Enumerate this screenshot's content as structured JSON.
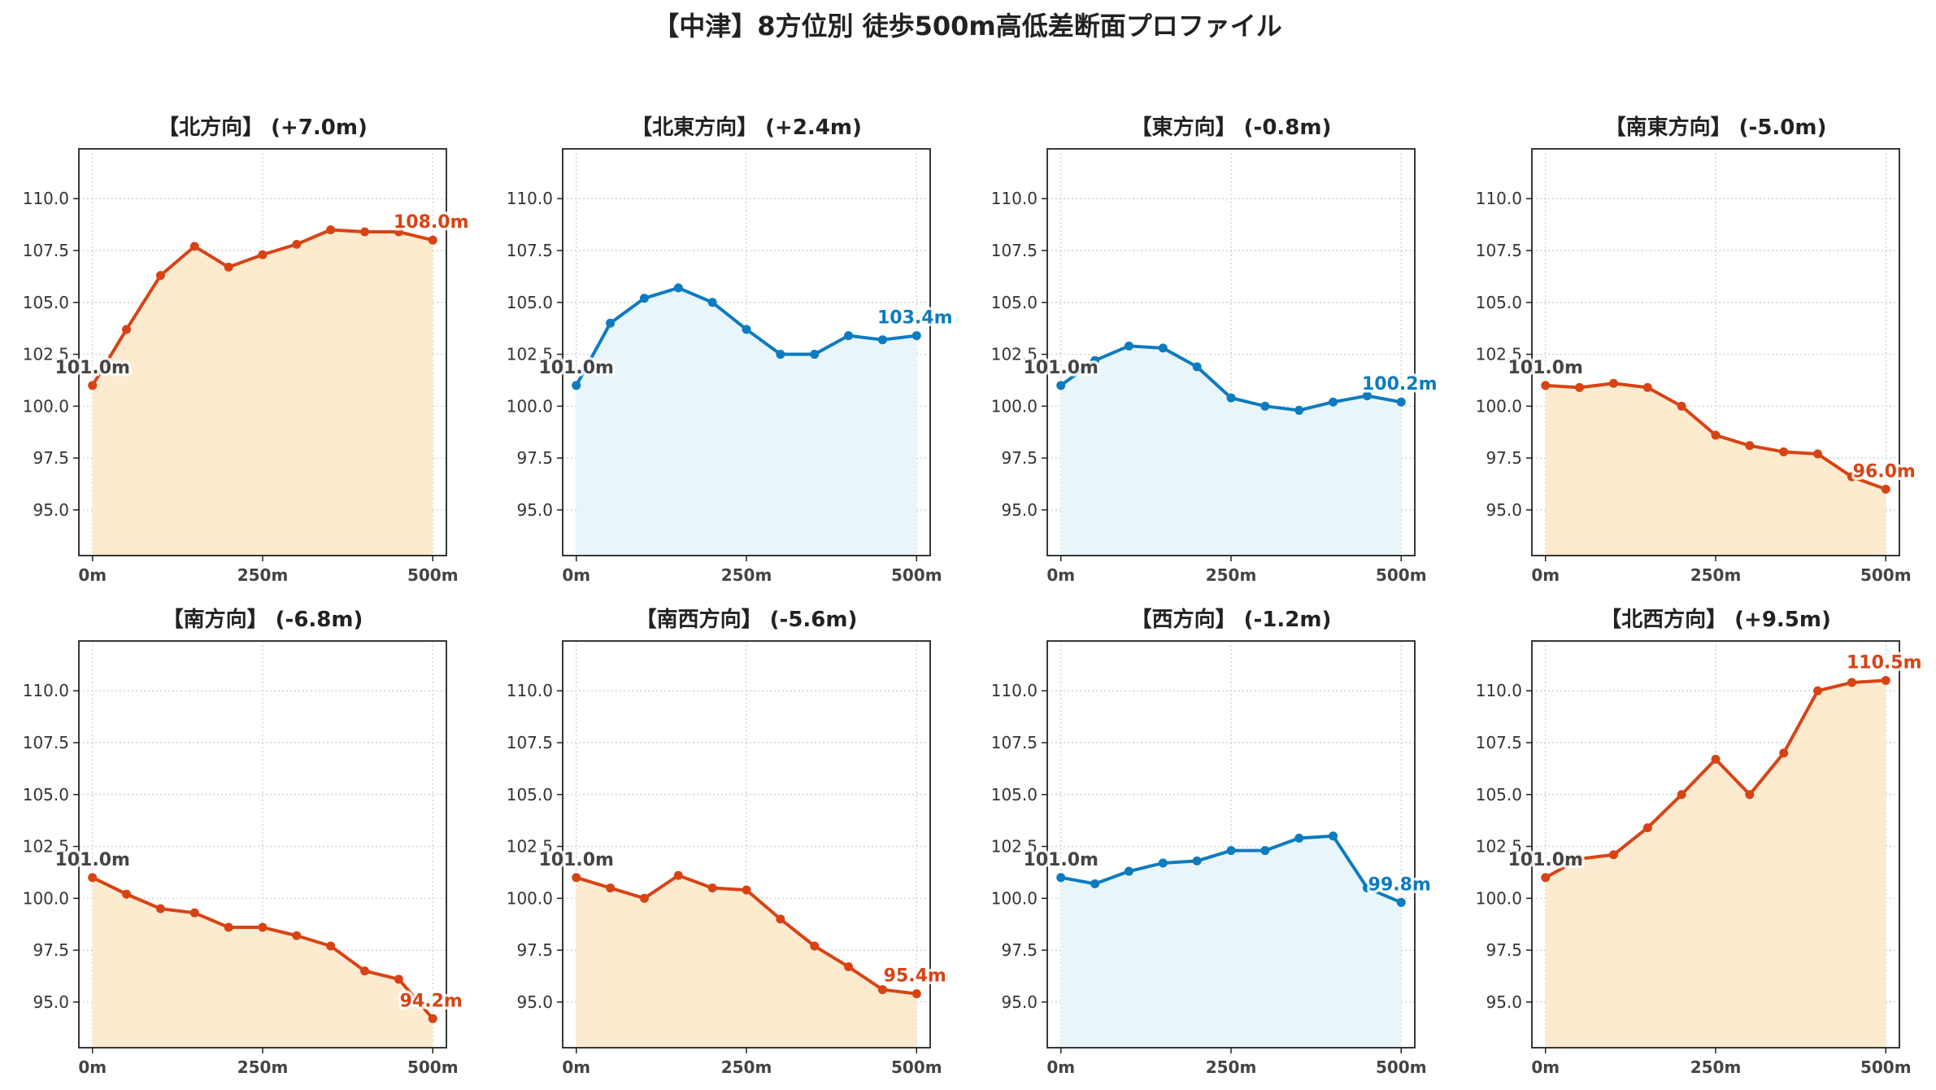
{
  "title": "【中津】8方位別 徒歩500m高低差断面プロファイル",
  "colors": {
    "up_line": "#d84315",
    "up_fill": "#fdebd0",
    "down_line": "#0d7bbf",
    "down_fill": "#e8f6fc",
    "start_label": "#444444"
  },
  "chart_data": [
    {
      "type": "line",
      "title": "【北方向】 (+7.0m)",
      "trend": "up",
      "x": [
        0,
        50,
        100,
        150,
        200,
        250,
        300,
        350,
        400,
        450,
        500
      ],
      "y": [
        101.0,
        103.7,
        106.3,
        107.7,
        106.7,
        107.3,
        107.8,
        108.5,
        108.4,
        108.4,
        108.0
      ],
      "start_label": "101.0m",
      "end_label": "108.0m",
      "xticks": [
        "0m",
        "250m",
        "500m"
      ],
      "yticks": [
        "95.0",
        "97.5",
        "100.0",
        "102.5",
        "105.0",
        "107.5",
        "110.0"
      ],
      "xlim": [
        -20,
        520
      ],
      "ylim": [
        92.8,
        112.4
      ],
      "grid": true
    },
    {
      "type": "line",
      "title": "【北東方向】 (+2.4m)",
      "trend": "down",
      "x": [
        0,
        50,
        100,
        150,
        200,
        250,
        300,
        350,
        400,
        450,
        500
      ],
      "y": [
        101.0,
        104.0,
        105.2,
        105.7,
        105.0,
        103.7,
        102.5,
        102.5,
        103.4,
        103.2,
        103.4
      ],
      "start_label": "101.0m",
      "end_label": "103.4m",
      "xticks": [
        "0m",
        "250m",
        "500m"
      ],
      "yticks": [
        "95.0",
        "97.5",
        "100.0",
        "102.5",
        "105.0",
        "107.5",
        "110.0"
      ],
      "xlim": [
        -20,
        520
      ],
      "ylim": [
        92.8,
        112.4
      ],
      "grid": true
    },
    {
      "type": "line",
      "title": "【東方向】 (-0.8m)",
      "trend": "down",
      "x": [
        0,
        50,
        100,
        150,
        200,
        250,
        300,
        350,
        400,
        450,
        500
      ],
      "y": [
        101.0,
        102.2,
        102.9,
        102.8,
        101.9,
        100.4,
        100.0,
        99.8,
        100.2,
        100.5,
        100.2
      ],
      "start_label": "101.0m",
      "end_label": "100.2m",
      "xticks": [
        "0m",
        "250m",
        "500m"
      ],
      "yticks": [
        "95.0",
        "97.5",
        "100.0",
        "102.5",
        "105.0",
        "107.5",
        "110.0"
      ],
      "xlim": [
        -20,
        520
      ],
      "ylim": [
        92.8,
        112.4
      ],
      "grid": true
    },
    {
      "type": "line",
      "title": "【南東方向】 (-5.0m)",
      "trend": "up",
      "x": [
        0,
        50,
        100,
        150,
        200,
        250,
        300,
        350,
        400,
        450,
        500
      ],
      "y": [
        101.0,
        100.9,
        101.1,
        100.9,
        100.0,
        98.6,
        98.1,
        97.8,
        97.7,
        96.6,
        96.0
      ],
      "start_label": "101.0m",
      "end_label": "96.0m",
      "xticks": [
        "0m",
        "250m",
        "500m"
      ],
      "yticks": [
        "95.0",
        "97.5",
        "100.0",
        "102.5",
        "105.0",
        "107.5",
        "110.0"
      ],
      "xlim": [
        -20,
        520
      ],
      "ylim": [
        92.8,
        112.4
      ],
      "grid": true
    },
    {
      "type": "line",
      "title": "【南方向】 (-6.8m)",
      "trend": "up",
      "x": [
        0,
        50,
        100,
        150,
        200,
        250,
        300,
        350,
        400,
        450,
        500
      ],
      "y": [
        101.0,
        100.2,
        99.5,
        99.3,
        98.6,
        98.6,
        98.2,
        97.7,
        96.5,
        96.1,
        94.2
      ],
      "start_label": "101.0m",
      "end_label": "94.2m",
      "xticks": [
        "0m",
        "250m",
        "500m"
      ],
      "yticks": [
        "95.0",
        "97.5",
        "100.0",
        "102.5",
        "105.0",
        "107.5",
        "110.0"
      ],
      "xlim": [
        -20,
        520
      ],
      "ylim": [
        92.8,
        112.4
      ],
      "grid": true
    },
    {
      "type": "line",
      "title": "【南西方向】 (-5.6m)",
      "trend": "up",
      "x": [
        0,
        50,
        100,
        150,
        200,
        250,
        300,
        350,
        400,
        450,
        500
      ],
      "y": [
        101.0,
        100.5,
        100.0,
        101.1,
        100.5,
        100.4,
        99.0,
        97.7,
        96.7,
        95.6,
        95.4
      ],
      "start_label": "101.0m",
      "end_label": "95.4m",
      "xticks": [
        "0m",
        "250m",
        "500m"
      ],
      "yticks": [
        "95.0",
        "97.5",
        "100.0",
        "102.5",
        "105.0",
        "107.5",
        "110.0"
      ],
      "xlim": [
        -20,
        520
      ],
      "ylim": [
        92.8,
        112.4
      ],
      "grid": true
    },
    {
      "type": "line",
      "title": "【西方向】 (-1.2m)",
      "trend": "down",
      "x": [
        0,
        50,
        100,
        150,
        200,
        250,
        300,
        350,
        400,
        450,
        500
      ],
      "y": [
        101.0,
        100.7,
        101.3,
        101.7,
        101.8,
        102.3,
        102.3,
        102.9,
        103.0,
        100.5,
        99.8
      ],
      "start_label": "101.0m",
      "end_label": "99.8m",
      "xticks": [
        "0m",
        "250m",
        "500m"
      ],
      "yticks": [
        "95.0",
        "97.5",
        "100.0",
        "102.5",
        "105.0",
        "107.5",
        "110.0"
      ],
      "xlim": [
        -20,
        520
      ],
      "ylim": [
        92.8,
        112.4
      ],
      "grid": true
    },
    {
      "type": "line",
      "title": "【北西方向】 (+9.5m)",
      "trend": "up",
      "x": [
        0,
        50,
        100,
        150,
        200,
        250,
        300,
        350,
        400,
        450,
        500
      ],
      "y": [
        101.0,
        101.9,
        102.1,
        103.4,
        105.0,
        106.7,
        105.0,
        107.0,
        110.0,
        110.4,
        110.5
      ],
      "start_label": "101.0m",
      "end_label": "110.5m",
      "xticks": [
        "0m",
        "250m",
        "500m"
      ],
      "yticks": [
        "95.0",
        "97.5",
        "100.0",
        "102.5",
        "105.0",
        "107.5",
        "110.0"
      ],
      "xlim": [
        -20,
        520
      ],
      "ylim": [
        92.8,
        112.4
      ],
      "grid": true
    }
  ]
}
